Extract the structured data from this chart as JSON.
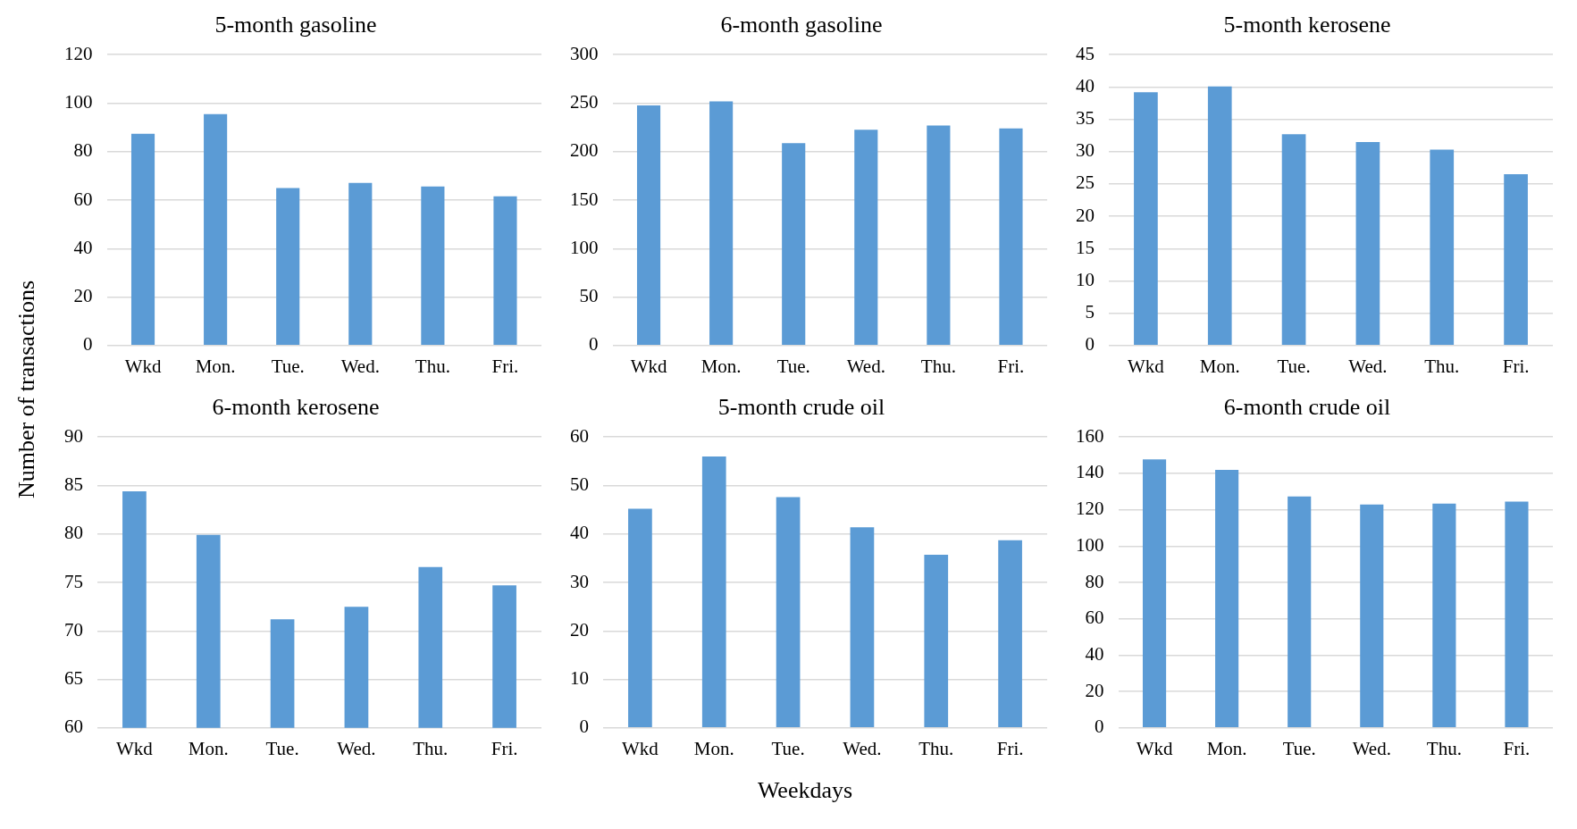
{
  "chart_data": [
    {
      "type": "bar",
      "title": "5-month gasoline",
      "ylabel": "Number of transactions",
      "categories": [
        "Wkd",
        "Mon.",
        "Tue.",
        "Wed.",
        "Thu.",
        "Fri."
      ],
      "values": [
        87.4,
        95.5,
        65,
        67.1,
        65.6,
        61.6
      ],
      "color": "#5b9bd5",
      "ylim": [
        0,
        120
      ],
      "yticks": [
        0,
        20,
        40,
        60,
        80,
        100,
        120
      ],
      "grid": "y"
    },
    {
      "type": "bar",
      "title": "6-month gasoline",
      "categories": [
        "Wkd",
        "Mon.",
        "Tue.",
        "Wed.",
        "Thu.",
        "Fri."
      ],
      "values": [
        247.7,
        251.8,
        208.8,
        222.6,
        227,
        224
      ],
      "color": "#5b9bd5",
      "ylim": [
        0,
        300
      ],
      "yticks": [
        0,
        50,
        100,
        150,
        200,
        250,
        300
      ],
      "grid": "y"
    },
    {
      "type": "bar",
      "title": "5-month kerosene",
      "categories": [
        "Wkd",
        "Mon.",
        "Tue.",
        "Wed.",
        "Thu.",
        "Fri."
      ],
      "values": [
        39.2,
        40.1,
        32.7,
        31.5,
        30.3,
        26.5
      ],
      "color": "#5b9bd5",
      "ylim": [
        0,
        45
      ],
      "yticks": [
        0,
        5,
        10,
        15,
        20,
        25,
        30,
        35,
        40,
        45
      ],
      "grid": "y"
    },
    {
      "type": "bar",
      "title": "6-month kerosene",
      "categories": [
        "Wkd",
        "Mon.",
        "Tue.",
        "Wed.",
        "Thu.",
        "Fri."
      ],
      "values": [
        84.4,
        79.9,
        71.2,
        72.5,
        76.6,
        74.7
      ],
      "color": "#5b9bd5",
      "ylim": [
        60,
        90
      ],
      "yticks": [
        60,
        65,
        70,
        75,
        80,
        85,
        90
      ],
      "grid": "y"
    },
    {
      "type": "bar",
      "title": "5-month crude oil",
      "xlabel": "Weekdays",
      "categories": [
        "Wkd",
        "Mon.",
        "Tue.",
        "Wed.",
        "Thu.",
        "Fri."
      ],
      "values": [
        45.2,
        56,
        47.6,
        41.4,
        35.7,
        38.7
      ],
      "color": "#5b9bd5",
      "ylim": [
        0,
        60
      ],
      "yticks": [
        0,
        10,
        20,
        30,
        40,
        50,
        60
      ],
      "grid": "y"
    },
    {
      "type": "bar",
      "title": "6-month crude oil",
      "categories": [
        "Wkd",
        "Mon.",
        "Tue.",
        "Wed.",
        "Thu.",
        "Fri."
      ],
      "values": [
        147.7,
        141.9,
        127.3,
        122.9,
        123.4,
        124.5
      ],
      "color": "#5b9bd5",
      "ylim": [
        0,
        160
      ],
      "yticks": [
        0,
        20,
        40,
        60,
        80,
        100,
        120,
        140,
        160
      ],
      "grid": "y"
    }
  ]
}
